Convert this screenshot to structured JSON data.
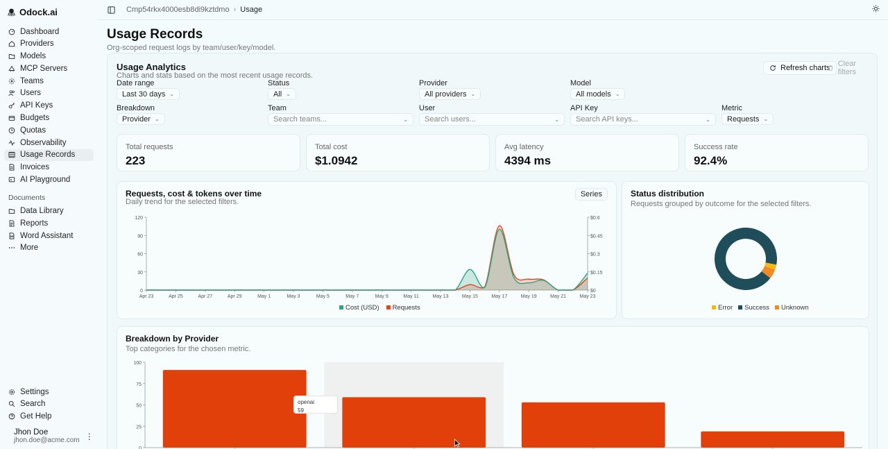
{
  "brand": {
    "name": "Odock.ai"
  },
  "nav": {
    "main": [
      {
        "label": "Dashboard",
        "icon": "dashboard-icon"
      },
      {
        "label": "Providers",
        "icon": "providers-icon"
      },
      {
        "label": "Models",
        "icon": "models-icon"
      },
      {
        "label": "MCP Servers",
        "icon": "mcp-servers-icon"
      },
      {
        "label": "Teams",
        "icon": "teams-icon"
      },
      {
        "label": "Users",
        "icon": "users-icon"
      },
      {
        "label": "API Keys",
        "icon": "key-icon"
      },
      {
        "label": "Budgets",
        "icon": "budgets-icon"
      },
      {
        "label": "Quotas",
        "icon": "quotas-icon"
      },
      {
        "label": "Observability",
        "icon": "activity-icon"
      },
      {
        "label": "Usage Records",
        "icon": "usage-records-icon"
      },
      {
        "label": "Invoices",
        "icon": "invoices-icon"
      },
      {
        "label": "AI Playground",
        "icon": "playground-icon"
      }
    ],
    "documents_label": "Documents",
    "documents": [
      {
        "label": "Data Library",
        "icon": "data-library-icon"
      },
      {
        "label": "Reports",
        "icon": "reports-icon"
      },
      {
        "label": "Word Assistant",
        "icon": "word-assistant-icon"
      },
      {
        "label": "More",
        "icon": "more-icon"
      }
    ],
    "bottom": [
      {
        "label": "Settings",
        "icon": "settings-icon"
      },
      {
        "label": "Search",
        "icon": "search-icon"
      },
      {
        "label": "Get Help",
        "icon": "help-icon"
      }
    ]
  },
  "user": {
    "name": "Jhon Doe",
    "email": "jhon.doe@acme.com",
    "menu": "⋮"
  },
  "topbar": {
    "org": "Cmp54rkx4000esb8di9kztdmo",
    "current": "Usage"
  },
  "page": {
    "title": "Usage Records",
    "subtitle": "Org-scoped request logs by team/user/key/model."
  },
  "analytics": {
    "title": "Usage Analytics",
    "subtitle": "Charts and stats based on the most recent usage records.",
    "refresh_label": "Refresh charts",
    "clear_label": "Clear filters"
  },
  "filters": {
    "date_range": {
      "label": "Date range",
      "value": "Last 30 days"
    },
    "status": {
      "label": "Status",
      "value": "All"
    },
    "provider": {
      "label": "Provider",
      "value": "All providers"
    },
    "model": {
      "label": "Model",
      "value": "All models"
    },
    "breakdown": {
      "label": "Breakdown",
      "value": "Provider"
    },
    "team": {
      "label": "Team",
      "placeholder": "Search teams..."
    },
    "user": {
      "label": "User",
      "placeholder": "Search users..."
    },
    "api_key": {
      "label": "API Key",
      "placeholder": "Search API keys..."
    },
    "metric": {
      "label": "Metric",
      "value": "Requests"
    }
  },
  "stats": [
    {
      "label": "Total requests",
      "value": "223"
    },
    {
      "label": "Total cost",
      "value": "$1.0942"
    },
    {
      "label": "Avg latency",
      "value": "4394 ms"
    },
    {
      "label": "Success rate",
      "value": "92.4%"
    }
  ],
  "timeseries_card": {
    "title": "Requests, cost & tokens over time",
    "subtitle": "Daily trend for the selected filters.",
    "series_button": "Series"
  },
  "status_card": {
    "title": "Status distribution",
    "subtitle": "Requests grouped by outcome for the selected filters."
  },
  "breakdown_card": {
    "title": "Breakdown by Provider",
    "subtitle": "Top categories for the chosen metric.",
    "tooltip": {
      "name": "openai",
      "value": "59"
    }
  },
  "colors": {
    "cost": "#2ea382",
    "requests": "#e8441c",
    "success": "#1f4e5a",
    "error": "#f5b815",
    "unknown": "#f08a24",
    "bar": "#e2400a"
  },
  "chart_data": [
    {
      "type": "line",
      "x": [
        "Apr 23",
        "Apr 24",
        "Apr 25",
        "Apr 26",
        "Apr 27",
        "Apr 28",
        "Apr 29",
        "Apr 30",
        "May 1",
        "May 2",
        "May 3",
        "May 4",
        "May 5",
        "May 6",
        "May 7",
        "May 8",
        "May 9",
        "May 10",
        "May 11",
        "May 12",
        "May 13",
        "May 14",
        "May 15",
        "May 16",
        "May 17",
        "May 18",
        "May 19",
        "May 20",
        "May 21",
        "May 22",
        "May 23"
      ],
      "x_ticks": [
        "Apr 23",
        "Apr 25",
        "Apr 27",
        "Apr 29",
        "May 1",
        "May 3",
        "May 5",
        "May 7",
        "May 9",
        "May 11",
        "May 13",
        "May 15",
        "May 17",
        "May 19",
        "May 21",
        "May 23"
      ],
      "y_ticks_left": [
        "0",
        "30",
        "60",
        "90",
        "120"
      ],
      "y_ticks_right": [
        "$0",
        "$0.15",
        "$0.3",
        "$0.45",
        "$0.6"
      ],
      "ylim": [
        0,
        120
      ],
      "ylim_right": [
        0,
        0.6
      ],
      "series": [
        {
          "name": "Requests",
          "axis": "left",
          "values": [
            0,
            0,
            0,
            0,
            0,
            0,
            0,
            0,
            0,
            0,
            0,
            0,
            0,
            0,
            0,
            0,
            0,
            0,
            0,
            0,
            0,
            0,
            9,
            5,
            106,
            25,
            18,
            17,
            0,
            0,
            20
          ]
        },
        {
          "name": "Cost (USD)",
          "axis": "right",
          "values": [
            0,
            0,
            0,
            0,
            0,
            0,
            0,
            0,
            0,
            0,
            0,
            0,
            0,
            0,
            0,
            0,
            0,
            0,
            0,
            0,
            0,
            0,
            0.17,
            0.02,
            0.5,
            0.1,
            0.06,
            0.08,
            0,
            0,
            0.14
          ]
        }
      ]
    },
    {
      "type": "pie",
      "categories": [
        "Error",
        "Success",
        "Unknown"
      ],
      "values": [
        6,
        206,
        11
      ]
    },
    {
      "type": "bar",
      "categories": [
        "",
        "openai",
        "",
        ""
      ],
      "values": [
        91,
        59,
        53,
        19
      ],
      "y_ticks": [
        "0",
        "25",
        "50",
        "75",
        "100"
      ],
      "ylim": [
        0,
        100
      ]
    }
  ]
}
